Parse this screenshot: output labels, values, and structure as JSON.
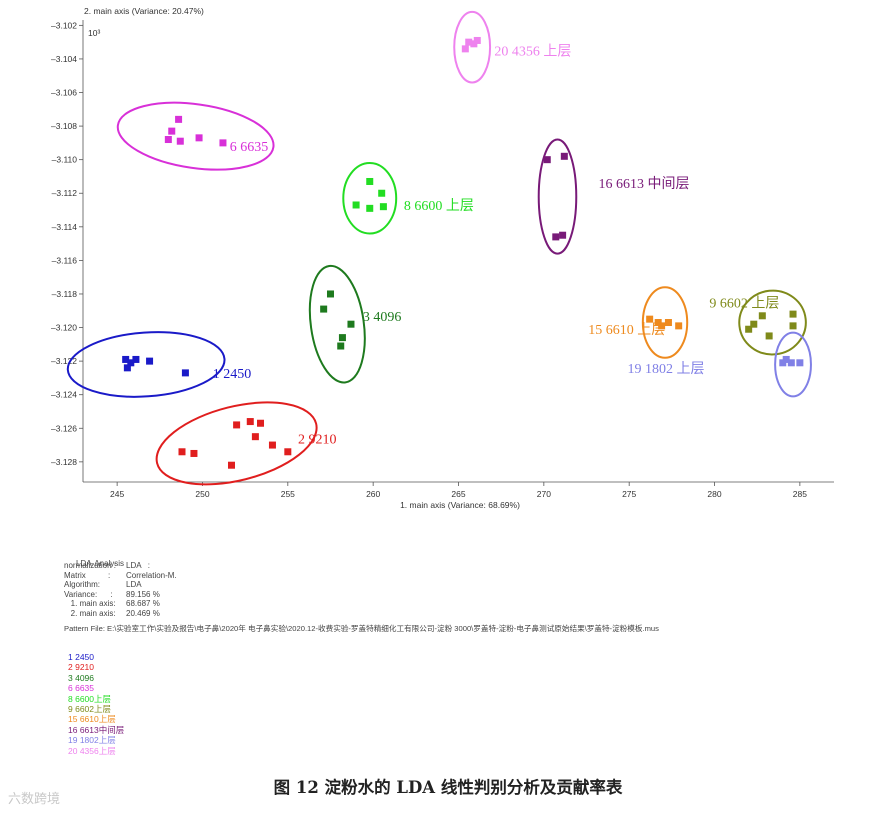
{
  "chart_data": {
    "type": "scatter",
    "xlabel": "1. main axis (Variance: 68.69%)",
    "ylabel": "2. main axis (Variance: 20.47%)",
    "y_multiplier": "10³",
    "xlim": [
      243,
      287
    ],
    "ylim": [
      -3.1292,
      -3.1018
    ],
    "x_ticks": [
      245,
      250,
      255,
      260,
      265,
      270,
      275,
      280,
      285
    ],
    "y_ticks": [
      -3.102,
      -3.104,
      -3.106,
      -3.108,
      -3.11,
      -3.112,
      -3.114,
      -3.116,
      -3.118,
      -3.12,
      -3.122,
      -3.124,
      -3.126,
      -3.128
    ],
    "grid": false,
    "series": [
      {
        "name": "1 2450",
        "color": "#1a1ac8",
        "points": [
          [
            245.5,
            -3.1219
          ],
          [
            245.8,
            -3.1221
          ],
          [
            246.1,
            -3.1219
          ],
          [
            245.6,
            -3.1224
          ],
          [
            246.9,
            -3.122
          ],
          [
            249.0,
            -3.1227
          ]
        ],
        "ellipse": {
          "cx": 246.7,
          "cy": -3.1222,
          "rx": 4.6,
          "ry": 0.0019,
          "angle": -4
        }
      },
      {
        "name": "2 9210",
        "color": "#e01e1e",
        "points": [
          [
            248.8,
            -3.1274
          ],
          [
            249.5,
            -3.1275
          ],
          [
            251.7,
            -3.1282
          ],
          [
            252.0,
            -3.1258
          ],
          [
            252.8,
            -3.1256
          ],
          [
            253.1,
            -3.1265
          ],
          [
            253.4,
            -3.1257
          ],
          [
            254.1,
            -3.127
          ],
          [
            255.0,
            -3.1274
          ]
        ],
        "ellipse": {
          "cx": 252.0,
          "cy": -3.1269,
          "rx": 4.8,
          "ry": 0.0022,
          "angle": -14
        }
      },
      {
        "name": "3 4096",
        "color": "#1e7a1e",
        "points": [
          [
            257.1,
            -3.1189
          ],
          [
            257.5,
            -3.118
          ],
          [
            258.7,
            -3.1198
          ],
          [
            258.2,
            -3.1206
          ],
          [
            258.1,
            -3.1211
          ]
        ],
        "ellipse": {
          "cx": 257.9,
          "cy": -3.1198,
          "rx": 1.55,
          "ry": 0.0035,
          "angle": -8
        }
      },
      {
        "name": "6 6635",
        "color": "#d830d8",
        "points": [
          [
            248.2,
            -3.1083
          ],
          [
            248.6,
            -3.1076
          ],
          [
            248.0,
            -3.1088
          ],
          [
            248.7,
            -3.1089
          ],
          [
            249.8,
            -3.1087
          ],
          [
            251.2,
            -3.109
          ]
        ],
        "ellipse": {
          "cx": 249.6,
          "cy": -3.1086,
          "rx": 4.6,
          "ry": 0.0019,
          "angle": 8
        }
      },
      {
        "name": "8 6600上层",
        "color": "#22dd22",
        "points": [
          [
            259.8,
            -3.1113
          ],
          [
            260.5,
            -3.112
          ],
          [
            259.0,
            -3.1127
          ],
          [
            259.8,
            -3.1129
          ],
          [
            260.6,
            -3.1128
          ]
        ],
        "ellipse": {
          "cx": 259.8,
          "cy": -3.1123,
          "rx": 1.55,
          "ry": 0.0021,
          "angle": 0
        }
      },
      {
        "name": "9 6602上层",
        "color": "#7f8a1a",
        "points": [
          [
            282.0,
            -3.1201
          ],
          [
            282.3,
            -3.1198
          ],
          [
            282.8,
            -3.1193
          ],
          [
            283.2,
            -3.1205
          ],
          [
            284.6,
            -3.1192
          ],
          [
            284.6,
            -3.1199
          ]
        ],
        "ellipse": {
          "cx": 283.4,
          "cy": -3.1197,
          "rx": 1.95,
          "ry": 0.0019,
          "angle": -6
        }
      },
      {
        "name": "15 6610上层",
        "color": "#ee8a1e",
        "points": [
          [
            276.2,
            -3.1195
          ],
          [
            276.7,
            -3.1197
          ],
          [
            276.9,
            -3.1199
          ],
          [
            277.3,
            -3.1197
          ],
          [
            277.9,
            -3.1199
          ]
        ],
        "ellipse": {
          "cx": 277.1,
          "cy": -3.1197,
          "rx": 1.3,
          "ry": 0.0021,
          "angle": 0
        }
      },
      {
        "name": "16 6613中间层",
        "color": "#781a78",
        "points": [
          [
            270.2,
            -3.11
          ],
          [
            271.2,
            -3.1098
          ],
          [
            270.7,
            -3.1146
          ],
          [
            271.1,
            -3.1145
          ]
        ],
        "ellipse": {
          "cx": 270.8,
          "cy": -3.1122,
          "rx": 1.1,
          "ry": 0.0034,
          "angle": 0
        }
      },
      {
        "name": "19 1802上层",
        "color": "#8080e6",
        "points": [
          [
            284.2,
            -3.1219
          ],
          [
            284.5,
            -3.1221
          ],
          [
            284.0,
            -3.1221
          ],
          [
            285.0,
            -3.1221
          ]
        ],
        "ellipse": {
          "cx": 284.6,
          "cy": -3.1222,
          "rx": 1.05,
          "ry": 0.0019,
          "angle": 0
        }
      },
      {
        "name": "20 4356上层",
        "color": "#ee82ee",
        "points": [
          [
            265.6,
            -3.103
          ],
          [
            266.1,
            -3.1029
          ],
          [
            265.9,
            -3.1031
          ],
          [
            265.4,
            -3.1034
          ]
        ],
        "ellipse": {
          "cx": 265.8,
          "cy": -3.1033,
          "rx": 1.05,
          "ry": 0.0021,
          "angle": 0
        }
      }
    ],
    "labels": [
      {
        "text": "1 2450",
        "x": 250.6,
        "y": -3.1227,
        "color": "#1a1ac8"
      },
      {
        "text": "2 9210",
        "x": 255.6,
        "y": -3.1266,
        "color": "#e01e1e"
      },
      {
        "text": "3 4096",
        "x": 259.4,
        "y": -3.1193,
        "color": "#1e7a1e"
      },
      {
        "text": "6 6635",
        "x": 251.6,
        "y": -3.1092,
        "color": "#d830d8"
      },
      {
        "text": "8 6600 上层",
        "x": 261.8,
        "y": -3.1127,
        "color": "#22dd22"
      },
      {
        "text": "9 6602 上层",
        "x": 279.7,
        "y": -3.1185,
        "color": "#7f8a1a"
      },
      {
        "text": "15 6610 上层",
        "x": 272.6,
        "y": -3.1201,
        "color": "#ee8a1e"
      },
      {
        "text": "16 6613 中间层",
        "x": 273.2,
        "y": -3.1114,
        "color": "#781a78"
      },
      {
        "text": "19 1802 上层",
        "x": 274.9,
        "y": -3.1224,
        "color": "#8080e6"
      },
      {
        "text": "20 4356 上层",
        "x": 267.1,
        "y": -3.1035,
        "color": "#ee82ee"
      }
    ]
  },
  "info": {
    "heading": "LDA-Analysis",
    "rows": [
      {
        "key": "normalization :",
        "value": "LDA   :"
      },
      {
        "key": "Matrix          :",
        "value": "Correlation-M."
      },
      {
        "key": "Algorithm:",
        "value": "LDA"
      },
      {
        "key": "Variance:      :",
        "value": "89.156 %"
      },
      {
        "key": "   1. main axis:",
        "value": "68.687 %"
      },
      {
        "key": "   2. main axis:",
        "value": "20.469 %"
      }
    ],
    "pattern_file": "Pattern File: E:\\实验室工作\\实验及报告\\电子鼻\\2020年 电子鼻实验\\2020.12-收费实验-罗盖特精细化工有限公司-淀粉 3000\\罗盖特-淀粉-电子鼻测试原始结果\\罗盖特-淀粉模板.mus"
  },
  "legend": [
    {
      "text": "1 2450",
      "color": "#1a1ac8"
    },
    {
      "text": "2 9210",
      "color": "#e01e1e"
    },
    {
      "text": "3 4096",
      "color": "#1e7a1e"
    },
    {
      "text": "6 6635",
      "color": "#d830d8"
    },
    {
      "text": "8 6600上层",
      "color": "#22dd22"
    },
    {
      "text": "9 6602上层",
      "color": "#7f8a1a"
    },
    {
      "text": "15 6610上层",
      "color": "#ee8a1e"
    },
    {
      "text": "16 6613中间层",
      "color": "#781a78"
    },
    {
      "text": "19 1802上层",
      "color": "#8080e6"
    },
    {
      "text": "20 4356上层",
      "color": "#ee82ee"
    }
  ],
  "caption": "图 12  淀粉水的 LDA 线性判别分析及贡献率表",
  "watermark": "六数跨境"
}
